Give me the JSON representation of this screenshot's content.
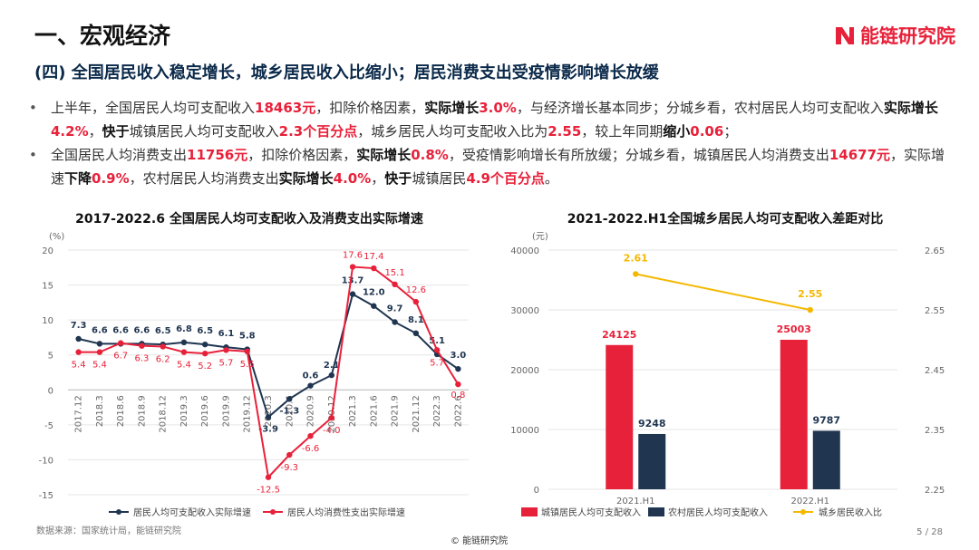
{
  "header": {
    "title": "一、宏观经济",
    "subtitle": "(四) 全国居民收入稳定增长，城乡居民收入比缩小；居民消费支出受疫情影响增长放缓",
    "logo_text": "能链研究院",
    "logo_mark": "N"
  },
  "bullets": [
    [
      {
        "t": "上半年，全国居民人均可支配收入"
      },
      {
        "t": "18463元",
        "s": "r"
      },
      {
        "t": "，扣除价格因素，"
      },
      {
        "t": "实际增长",
        "s": "k"
      },
      {
        "t": "3.0%",
        "s": "r"
      },
      {
        "t": "，与经济增长基本同步；分城乡看，农村居民人均可支配收入"
      },
      {
        "t": "实际增长",
        "s": "k"
      },
      {
        "t": "4.2%",
        "s": "r"
      },
      {
        "t": "，"
      },
      {
        "t": "快于",
        "s": "k"
      },
      {
        "t": "城镇居民人均可支配收入"
      },
      {
        "t": "2.3个百分点",
        "s": "r"
      },
      {
        "t": "，城乡居民人均可支配收入比为"
      },
      {
        "t": "2.55",
        "s": "r"
      },
      {
        "t": "，较上年同期"
      },
      {
        "t": "缩小",
        "s": "k"
      },
      {
        "t": "0.06",
        "s": "r"
      },
      {
        "t": "；"
      }
    ],
    [
      {
        "t": "全国居民人均消费支出"
      },
      {
        "t": "11756元",
        "s": "r"
      },
      {
        "t": "，扣除价格因素，"
      },
      {
        "t": "实际增长",
        "s": "k"
      },
      {
        "t": "0.8%",
        "s": "r"
      },
      {
        "t": "，受疫情影响增长有所放缓；分城乡看，城镇居民人均消费支出"
      },
      {
        "t": "14677元",
        "s": "r"
      },
      {
        "t": "，实际增速"
      },
      {
        "t": "下降",
        "s": "k"
      },
      {
        "t": "0.9%",
        "s": "r"
      },
      {
        "t": "，农村居民人均消费支出"
      },
      {
        "t": "实际增长",
        "s": "k"
      },
      {
        "t": "4.0%",
        "s": "r"
      },
      {
        "t": "，"
      },
      {
        "t": "快于",
        "s": "k"
      },
      {
        "t": "城镇居民"
      },
      {
        "t": "4.9个百分点",
        "s": "r"
      },
      {
        "t": "。"
      }
    ]
  ],
  "chart_data": [
    {
      "type": "line",
      "title": "2017-2022.6 全国居民人均可支配收入及消费支出实际增速",
      "ylabel": "(%)",
      "ylim": [
        -15,
        20
      ],
      "yticks": [
        -15,
        -10,
        -5,
        0,
        5,
        10,
        15,
        20
      ],
      "categories": [
        "2017.12",
        "2018.3",
        "2018.6",
        "2018.9",
        "2018.12",
        "2019.3",
        "2019.6",
        "2019.9",
        "2019.12",
        "2020.3",
        "2020.6",
        "2020.9",
        "2020.12",
        "2021.3",
        "2021.6",
        "2021.9",
        "2021.12",
        "2022.3",
        "2022.6"
      ],
      "series": [
        {
          "name": "居民人均可支配收入实际增速",
          "color": "#1f3550",
          "values": [
            7.3,
            6.6,
            6.6,
            6.6,
            6.5,
            6.8,
            6.5,
            6.1,
            5.8,
            -3.9,
            -1.3,
            0.6,
            2.1,
            13.7,
            12.0,
            9.7,
            8.1,
            5.1,
            3.0
          ],
          "labels": [
            "7.3",
            "6.6",
            "6.6",
            "6.6",
            "6.5",
            "6.8",
            "6.5",
            "6.1",
            "5.8",
            "-3.9",
            "-1.3",
            "0.6",
            "2.1",
            "13.7",
            "12.0",
            "9.7",
            "8.1",
            "5.1",
            "3.0"
          ]
        },
        {
          "name": "居民人均消费性支出实际增速",
          "color": "#e8213a",
          "values": [
            5.4,
            5.4,
            6.7,
            6.3,
            6.2,
            5.4,
            5.2,
            5.7,
            5.5,
            -12.5,
            -9.3,
            -6.6,
            -4.0,
            17.6,
            17.4,
            15.1,
            12.6,
            5.7,
            0.8
          ],
          "labels": [
            "5.4",
            "5.4",
            "6.7",
            "6.3",
            "6.2",
            "5.4",
            "5.2",
            "5.7",
            "5.5",
            "-12.5",
            "-9.3",
            "-6.6",
            "-4.0",
            "17.6",
            "17.4",
            "15.1",
            "12.6",
            "5.7",
            "0.8"
          ]
        }
      ],
      "grid": true,
      "legend": "bottom"
    },
    {
      "type": "bar",
      "title": "2021-2022.H1全国城乡居民人均可支配收入差距对比",
      "ylabel": "(元)",
      "categories": [
        "2021.H1",
        "2022.H1"
      ],
      "ylim": [
        0,
        40000
      ],
      "yticks": [
        0,
        10000,
        20000,
        30000,
        40000
      ],
      "y2lim": [
        2.25,
        2.65
      ],
      "y2ticks": [
        "2.25",
        "2.35",
        "2.45",
        "2.55",
        "2.65"
      ],
      "series": [
        {
          "name": "城镇居民人均可支配收入",
          "color": "#e8213a",
          "values": [
            24125,
            25003
          ]
        },
        {
          "name": "农村居民人均可支配收入",
          "color": "#1f3550",
          "values": [
            9248,
            9787
          ]
        },
        {
          "name": "城乡居民收入比",
          "color": "#f5b800",
          "type": "line",
          "axis": "right",
          "values": [
            2.61,
            2.55
          ],
          "labels": [
            "2.61",
            "2.55"
          ]
        }
      ],
      "grid": true,
      "legend": "bottom"
    }
  ],
  "footer": {
    "source": "数据来源：国家统计局，能链研究院",
    "copyright": "© 能链研究院",
    "page": "5 / 28"
  }
}
